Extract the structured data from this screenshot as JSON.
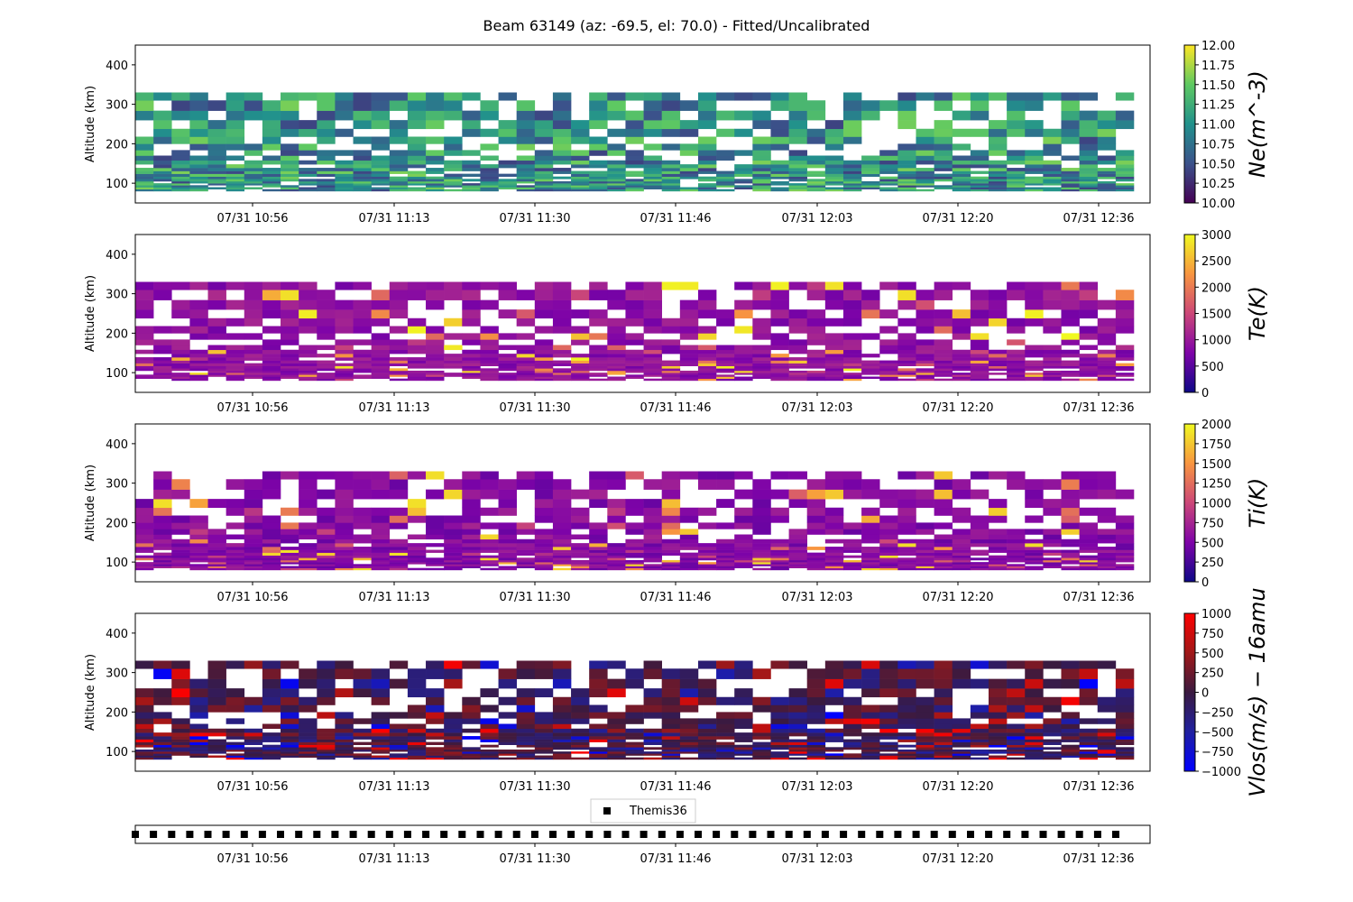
{
  "title": "Beam 63149 (az: -69.5, el: 70.0) - Fitted/Uncalibrated",
  "x_tick_labels": [
    "07/31 10:56",
    "07/31 11:13",
    "07/31 11:30",
    "07/31 11:46",
    "07/31 12:03",
    "07/31 12:20",
    "07/31 12:36"
  ],
  "y_tick_labels": [
    "100",
    "200",
    "300",
    "400"
  ],
  "ylabel": "Altitude (km)",
  "legend": {
    "marker": "square",
    "label": "Themis36"
  },
  "chart_data": [
    {
      "type": "heatmap",
      "id": "ne",
      "ylabel": "Altitude (km)",
      "ylim": [
        50,
        450
      ],
      "colormap": "viridis",
      "colorbar": {
        "label": "Ne(m^-3)",
        "range": [
          10.0,
          12.0
        ],
        "ticks": [
          "10.00",
          "10.25",
          "10.50",
          "10.75",
          "11.00",
          "11.25",
          "11.50",
          "11.75",
          "12.00"
        ]
      },
      "x_ticks": [
        "07/31 10:56",
        "07/31 11:13",
        "07/31 11:30",
        "07/31 11:46",
        "07/31 12:03",
        "07/31 12:20",
        "07/31 12:36"
      ],
      "altitude_range_km": [
        80,
        330
      ],
      "time_columns": 55,
      "typical_value": 11.0
    },
    {
      "type": "heatmap",
      "id": "te",
      "ylabel": "Altitude (km)",
      "ylim": [
        50,
        450
      ],
      "colormap": "plasma",
      "colorbar": {
        "label": "Te(K)",
        "range": [
          0,
          3000
        ],
        "ticks": [
          "0",
          "500",
          "1000",
          "1500",
          "2000",
          "2500",
          "3000"
        ]
      },
      "x_ticks": [
        "07/31 10:56",
        "07/31 11:13",
        "07/31 11:30",
        "07/31 11:46",
        "07/31 12:03",
        "07/31 12:20",
        "07/31 12:36"
      ],
      "altitude_range_km": [
        80,
        330
      ],
      "time_columns": 55,
      "typical_value": 900
    },
    {
      "type": "heatmap",
      "id": "ti",
      "ylabel": "Altitude (km)",
      "ylim": [
        50,
        450
      ],
      "colormap": "plasma",
      "colorbar": {
        "label": "Ti(K)",
        "range": [
          0,
          2000
        ],
        "ticks": [
          "0",
          "250",
          "500",
          "750",
          "1000",
          "1250",
          "1500",
          "1750",
          "2000"
        ]
      },
      "x_ticks": [
        "07/31 10:56",
        "07/31 11:13",
        "07/31 11:30",
        "07/31 11:46",
        "07/31 12:03",
        "07/31 12:20",
        "07/31 12:36"
      ],
      "altitude_range_km": [
        80,
        330
      ],
      "time_columns": 55,
      "typical_value": 550
    },
    {
      "type": "heatmap",
      "id": "vlos",
      "ylabel": "Altitude (km)",
      "ylim": [
        50,
        450
      ],
      "colormap": "bwr",
      "colorbar": {
        "label": "Vlos(m/s) − 16amu",
        "range": [
          -1000,
          1000
        ],
        "ticks": [
          "−1000",
          "−750",
          "−500",
          "−250",
          "0",
          "250",
          "500",
          "750",
          "1000"
        ]
      },
      "x_ticks": [
        "07/31 10:56",
        "07/31 11:13",
        "07/31 11:30",
        "07/31 11:46",
        "07/31 12:03",
        "07/31 12:20",
        "07/31 12:36"
      ],
      "altitude_range_km": [
        80,
        330
      ],
      "time_columns": 55,
      "typical_value": 0
    },
    {
      "type": "scatter",
      "id": "themis",
      "series": [
        {
          "name": "Themis36",
          "marker": "square",
          "count": 55
        }
      ],
      "x_ticks": [
        "07/31 10:56",
        "07/31 11:13",
        "07/31 11:30",
        "07/31 11:46",
        "07/31 12:03",
        "07/31 12:20",
        "07/31 12:36"
      ]
    }
  ]
}
